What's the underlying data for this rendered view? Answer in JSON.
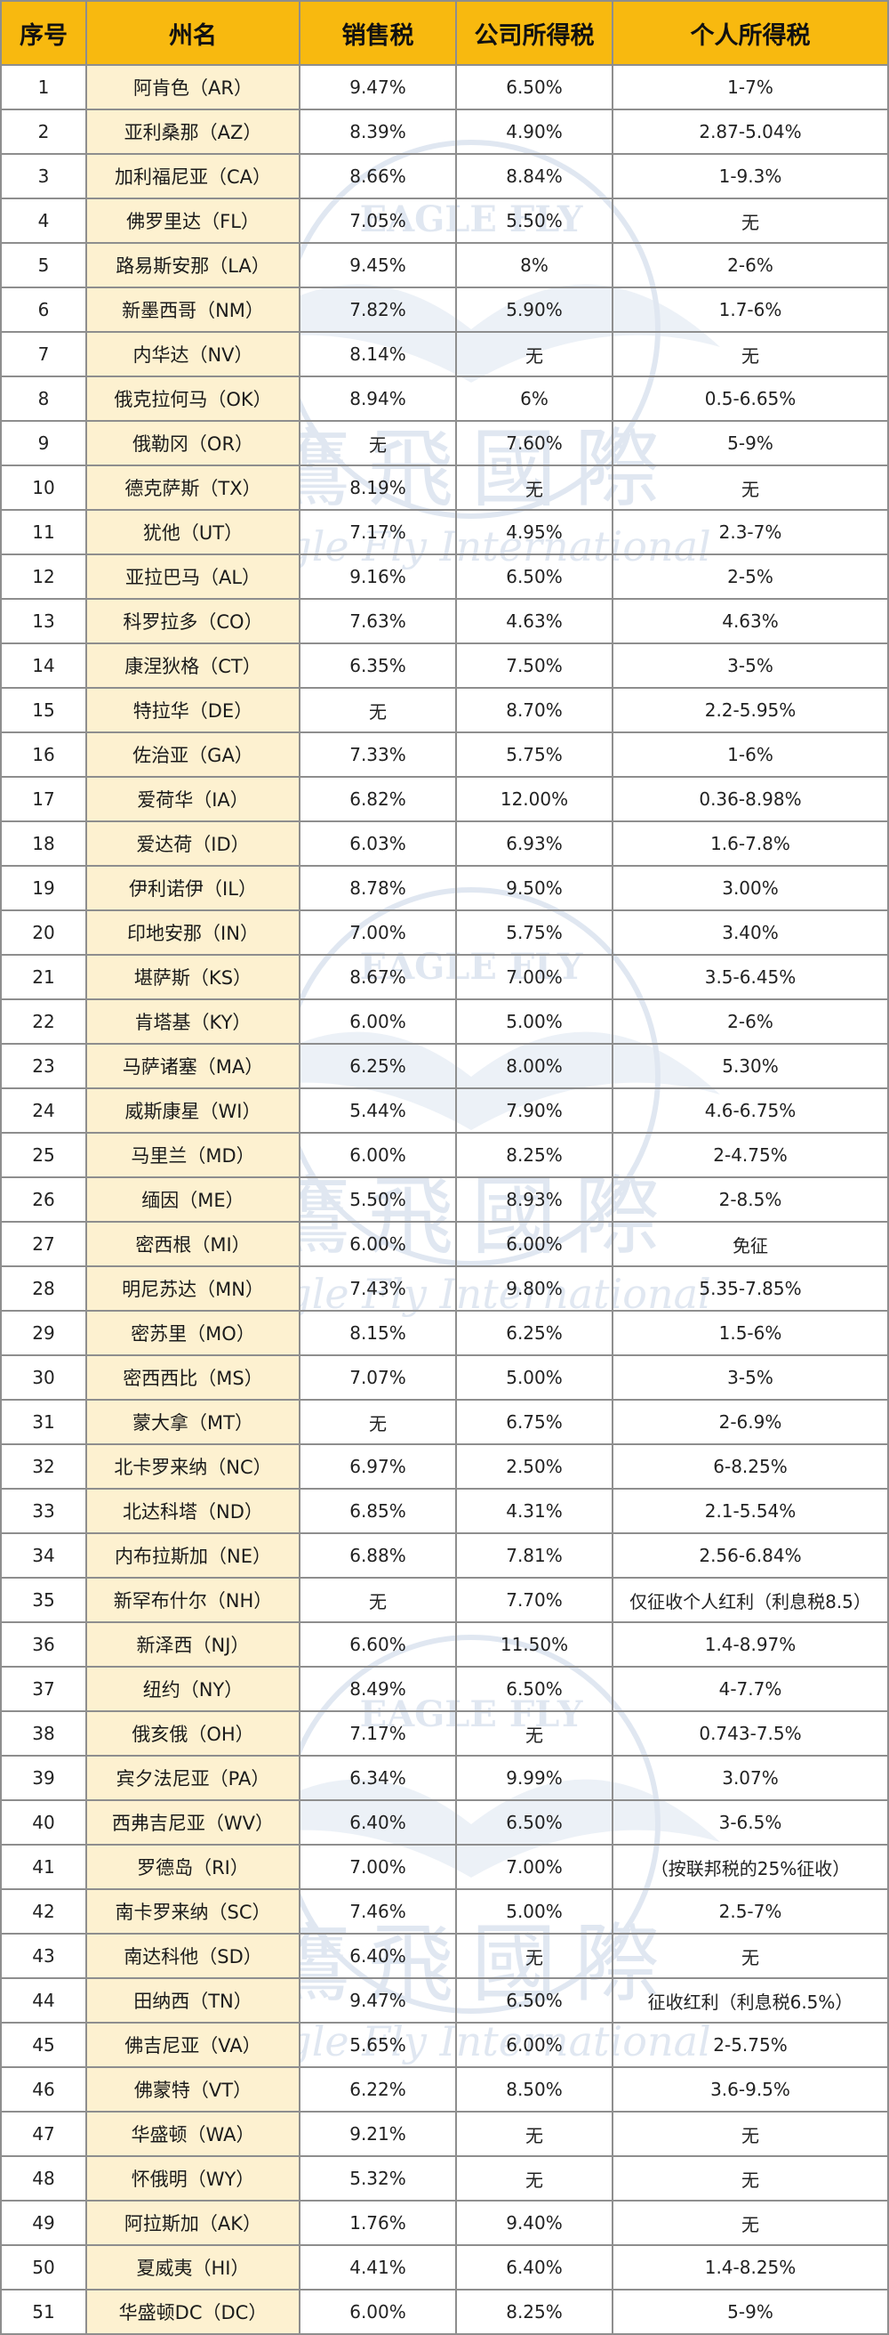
{
  "headers": [
    "序号",
    "州名",
    "销售税",
    "公司所得税",
    "个人所得税"
  ],
  "watermark": {
    "logo_text": "EAGLE FLY",
    "cn": "鷹飛國際",
    "en": "Eagle Fly International",
    "color": "#c7d4e6"
  },
  "rows": [
    [
      "1",
      "阿肯色（AR）",
      "9.47%",
      "6.50%",
      "1-7%"
    ],
    [
      "2",
      "亚利桑那（AZ）",
      "8.39%",
      "4.90%",
      "2.87-5.04%"
    ],
    [
      "3",
      "加利福尼亚（CA）",
      "8.66%",
      "8.84%",
      "1-9.3%"
    ],
    [
      "4",
      "佛罗里达（FL）",
      "7.05%",
      "5.50%",
      "无"
    ],
    [
      "5",
      "路易斯安那（LA）",
      "9.45%",
      "8%",
      "2-6%"
    ],
    [
      "6",
      "新墨西哥（NM）",
      "7.82%",
      "5.90%",
      "1.7-6%"
    ],
    [
      "7",
      "内华达（NV）",
      "8.14%",
      "无",
      "无"
    ],
    [
      "8",
      "俄克拉何马（OK）",
      "8.94%",
      "6%",
      "0.5-6.65%"
    ],
    [
      "9",
      "俄勒冈（OR）",
      "无",
      "7.60%",
      "5-9%"
    ],
    [
      "10",
      "德克萨斯（TX）",
      "8.19%",
      "无",
      "无"
    ],
    [
      "11",
      "犹他（UT）",
      "7.17%",
      "4.95%",
      "2.3-7%"
    ],
    [
      "12",
      "亚拉巴马（AL）",
      "9.16%",
      "6.50%",
      "2-5%"
    ],
    [
      "13",
      "科罗拉多（CO）",
      "7.63%",
      "4.63%",
      "4.63%"
    ],
    [
      "14",
      "康涅狄格（CT）",
      "6.35%",
      "7.50%",
      "3-5%"
    ],
    [
      "15",
      "特拉华（DE）",
      "无",
      "8.70%",
      "2.2-5.95%"
    ],
    [
      "16",
      "佐治亚（GA）",
      "7.33%",
      "5.75%",
      "1-6%"
    ],
    [
      "17",
      "爱荷华（IA）",
      "6.82%",
      "12.00%",
      "0.36-8.98%"
    ],
    [
      "18",
      "爱达荷（ID）",
      "6.03%",
      "6.93%",
      "1.6-7.8%"
    ],
    [
      "19",
      "伊利诺伊（IL）",
      "8.78%",
      "9.50%",
      "3.00%"
    ],
    [
      "20",
      "印地安那（IN）",
      "7.00%",
      "5.75%",
      "3.40%"
    ],
    [
      "21",
      "堪萨斯（KS）",
      "8.67%",
      "7.00%",
      "3.5-6.45%"
    ],
    [
      "22",
      "肯塔基（KY）",
      "6.00%",
      "5.00%",
      "2-6%"
    ],
    [
      "23",
      "马萨诸塞（MA）",
      "6.25%",
      "8.00%",
      "5.30%"
    ],
    [
      "24",
      "威斯康星（WI）",
      "5.44%",
      "7.90%",
      "4.6-6.75%"
    ],
    [
      "25",
      "马里兰（MD）",
      "6.00%",
      "8.25%",
      "2-4.75%"
    ],
    [
      "26",
      "缅因（ME）",
      "5.50%",
      "8.93%",
      "2-8.5%"
    ],
    [
      "27",
      "密西根（MI）",
      "6.00%",
      "6.00%",
      "免征"
    ],
    [
      "28",
      "明尼苏达（MN）",
      "7.43%",
      "9.80%",
      "5.35-7.85%"
    ],
    [
      "29",
      "密苏里（MO）",
      "8.15%",
      "6.25%",
      "1.5-6%"
    ],
    [
      "30",
      "密西西比（MS）",
      "7.07%",
      "5.00%",
      "3-5%"
    ],
    [
      "31",
      "蒙大拿（MT）",
      "无",
      "6.75%",
      "2-6.9%"
    ],
    [
      "32",
      "北卡罗来纳（NC）",
      "6.97%",
      "2.50%",
      "6-8.25%"
    ],
    [
      "33",
      "北达科塔（ND）",
      "6.85%",
      "4.31%",
      "2.1-5.54%"
    ],
    [
      "34",
      "内布拉斯加（NE）",
      "6.88%",
      "7.81%",
      "2.56-6.84%"
    ],
    [
      "35",
      "新罕布什尔（NH）",
      "无",
      "7.70%",
      "仅征收个人红利（利息税8.5）"
    ],
    [
      "36",
      "新泽西（NJ）",
      "6.60%",
      "11.50%",
      "1.4-8.97%"
    ],
    [
      "37",
      "纽约（NY）",
      "8.49%",
      "6.50%",
      "4-7.7%"
    ],
    [
      "38",
      "俄亥俄（OH）",
      "7.17%",
      "无",
      "0.743-7.5%"
    ],
    [
      "39",
      "宾夕法尼亚（PA）",
      "6.34%",
      "9.99%",
      "3.07%"
    ],
    [
      "40",
      "西弗吉尼亚（WV）",
      "6.40%",
      "6.50%",
      "3-6.5%"
    ],
    [
      "41",
      "罗德岛（RI）",
      "7.00%",
      "7.00%",
      "（按联邦税的25%征收）"
    ],
    [
      "42",
      "南卡罗来纳（SC）",
      "7.46%",
      "5.00%",
      "2.5-7%"
    ],
    [
      "43",
      "南达科他（SD）",
      "6.40%",
      "无",
      "无"
    ],
    [
      "44",
      "田纳西（TN）",
      "9.47%",
      "6.50%",
      "征收红利（利息税6.5%）"
    ],
    [
      "45",
      "佛吉尼亚（VA）",
      "5.65%",
      "6.00%",
      "2-5.75%"
    ],
    [
      "46",
      "佛蒙特（VT）",
      "6.22%",
      "8.50%",
      "3.6-9.5%"
    ],
    [
      "47",
      "华盛顿（WA）",
      "9.21%",
      "无",
      "无"
    ],
    [
      "48",
      "怀俄明（WY）",
      "5.32%",
      "无",
      "无"
    ],
    [
      "49",
      "阿拉斯加（AK）",
      "1.76%",
      "9.40%",
      "无"
    ],
    [
      "50",
      "夏威夷（HI）",
      "4.41%",
      "6.40%",
      "1.4-8.25%"
    ],
    [
      "51",
      "华盛顿DC（DC）",
      "6.00%",
      "8.25%",
      "5-9%"
    ]
  ]
}
